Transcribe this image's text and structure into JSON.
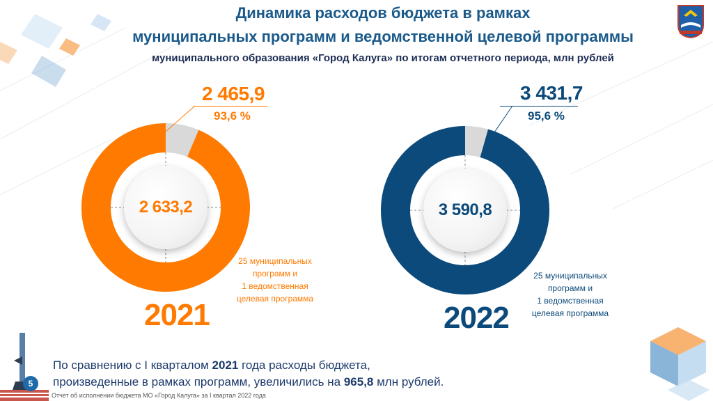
{
  "header": {
    "title_line1": "Динамика расходов бюджета в рамках",
    "title_line2": "муниципальных программ и ведомственной целевой программы",
    "subtitle": "муниципального образования «Город Калуга» по итогам отчетного периода, млн рублей"
  },
  "chart_data": [
    {
      "type": "pie",
      "year_label": "2021",
      "total": "2 633,2",
      "executed": "2 465,9",
      "percent_label": "93,6 %",
      "percent": 93.6,
      "description_lines": [
        "25 муниципальных",
        "программ и",
        "1 ведомственная",
        "целевая программа"
      ],
      "color": "#ff7a00"
    },
    {
      "type": "pie",
      "year_label": "2022",
      "total": "3 590,8",
      "executed": "3 431,7",
      "percent_label": "95,6 %",
      "percent": 95.6,
      "description_lines": [
        "25 муниципальных",
        "программ и",
        "1 ведомственная",
        "целевая программа"
      ],
      "color": "#0b4a7a"
    }
  ],
  "colors": {
    "remainder": "#d9d9d9",
    "title": "#1a5a8a"
  },
  "footer": {
    "line1_a": "По сравнению с I кварталом ",
    "line1_year": "2021",
    "line1_b": " года расходы бюджета,",
    "line2_a": "произведенные в рамках программ, увеличились на ",
    "line2_value": "965,8",
    "line2_b": " млн рублей.",
    "page_number": "5",
    "note": "Отчет об исполнении бюджета МО «Город Калуга» за I квартал 2022 года"
  }
}
